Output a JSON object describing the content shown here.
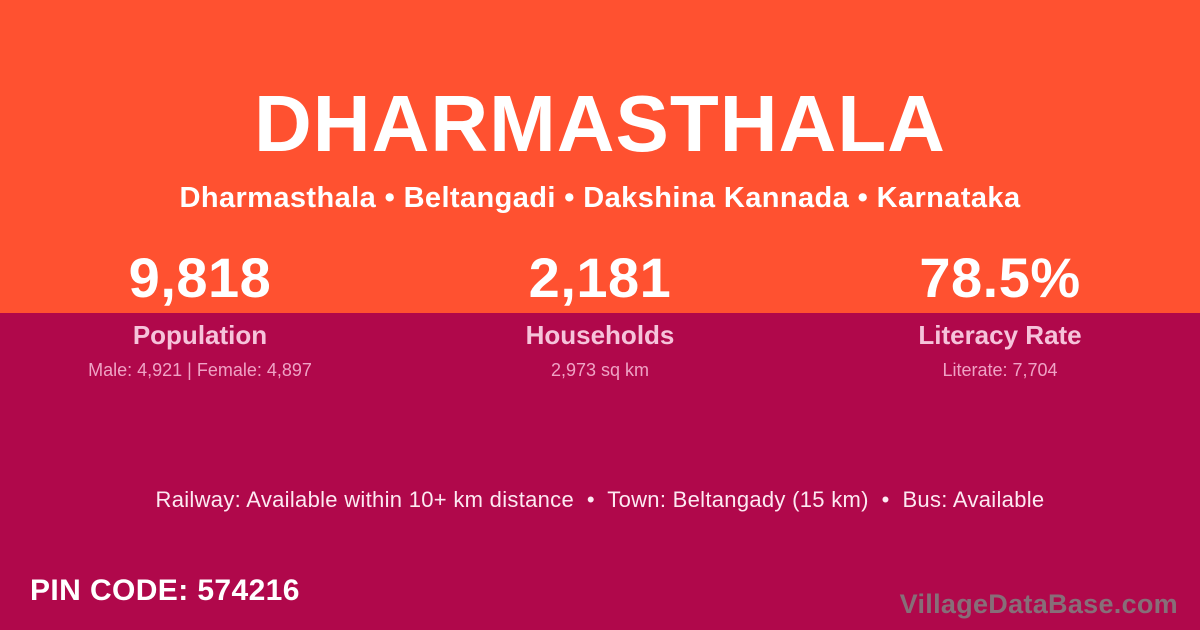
{
  "card": {
    "title": "DHARMASTHALA",
    "location_line": "Dharmasthala • Beltangadi • Dakshina Kannada • Karnataka"
  },
  "stats": [
    {
      "value": "9,818",
      "label": "Population",
      "detail": "Male: 4,921 | Female: 4,897"
    },
    {
      "value": "2,181",
      "label": "Households",
      "detail": "2,973 sq km"
    },
    {
      "value": "78.5%",
      "label": "Literacy Rate",
      "detail": "Literate: 7,704"
    }
  ],
  "info_line": "Railway: Available within 10+ km distance  •  Town: Beltangady (15 km)  •  Bus: Available",
  "footer": {
    "pin_code": "PIN CODE: 574216",
    "watermark": "VillageDataBase.com"
  },
  "colors": {
    "top_band": "#ff5130",
    "bottom_band": "#b0084b",
    "stat_label": "#f6c3da",
    "stat_detail": "#efa3c5",
    "info_text": "#fde9f2"
  }
}
